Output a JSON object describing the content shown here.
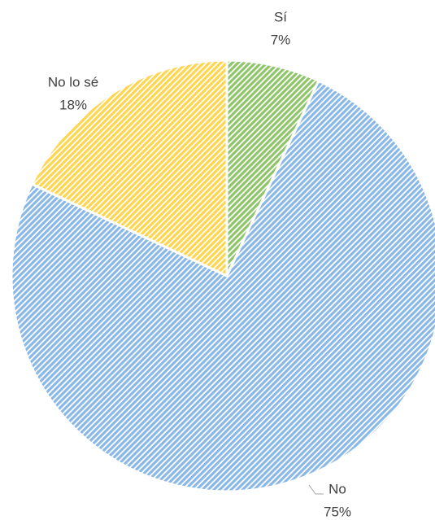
{
  "chart_data": {
    "type": "pie",
    "categories": [
      "Sí",
      "No",
      "No lo sé"
    ],
    "values": [
      7,
      75,
      18
    ],
    "value_labels": [
      "7%",
      "75%",
      "18%"
    ],
    "colors": [
      "#8fc46a",
      "#8ab8e6",
      "#ffd54f"
    ]
  }
}
